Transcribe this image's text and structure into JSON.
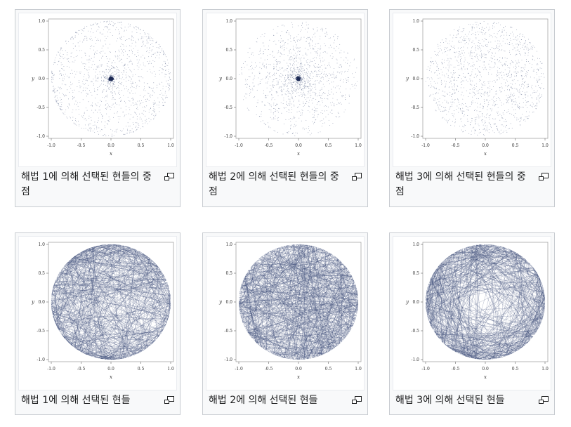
{
  "gallery": [
    {
      "caption": "해법 1에 의해 선택된 현들의 중점",
      "kind": "points",
      "method": 1
    },
    {
      "caption": "해법 2에 의해 선택된 현들의 중점",
      "kind": "points",
      "method": 2
    },
    {
      "caption": "해법 3에 의해 선택된 현들의 중점",
      "kind": "points",
      "method": 3
    },
    {
      "caption": "해법 1에 의해 선택된 현들",
      "kind": "chords",
      "method": 1
    },
    {
      "caption": "해법 2에 의해 선택된 현들",
      "kind": "chords",
      "method": 2
    },
    {
      "caption": "해법 3에 의해 선택된 현들",
      "kind": "chords",
      "method": 3
    }
  ],
  "axes": {
    "xlabel": "x",
    "ylabel": "y",
    "ticks": [
      "-1.0",
      "-0.5",
      "0.0",
      "0.5",
      "1.0"
    ],
    "xlim": [
      -1.0,
      1.0
    ],
    "ylim": [
      -1.0,
      1.0
    ]
  },
  "icons": {
    "magnify": "magnify-icon"
  },
  "colors": {
    "plot": "#3b4a75",
    "border": "#c8ccd1",
    "card_bg": "#f8f9fa"
  }
}
